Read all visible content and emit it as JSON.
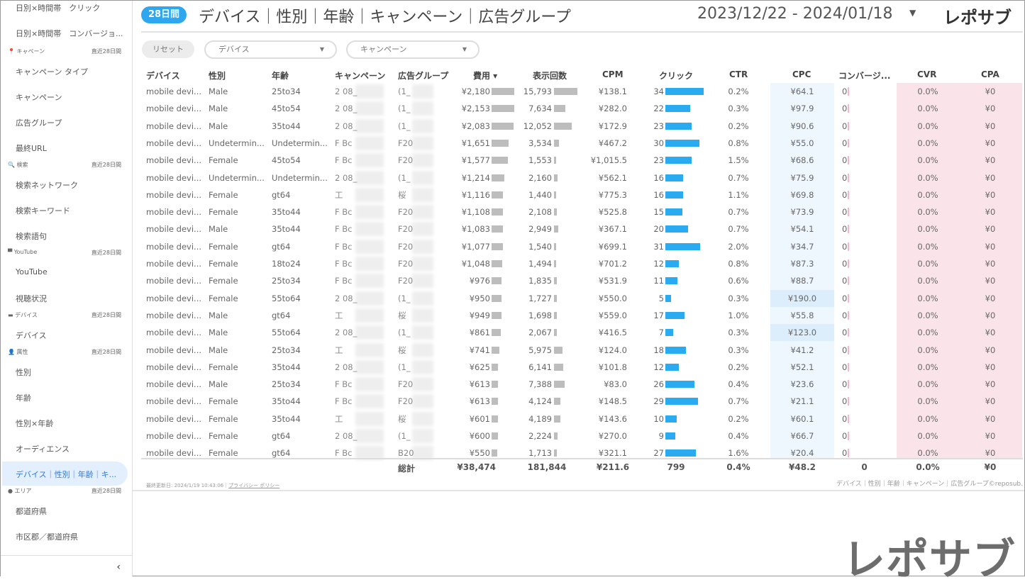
{
  "sidebar": {
    "items_top": [
      "日別×時間帯　クリック",
      "日別×時間帯　コンバージョ..."
    ],
    "sections": [
      {
        "label": "キャペーン",
        "period": "直近28日間",
        "icon": "pin-icon",
        "items": [
          "キャンペーン タイプ",
          "キャンペーン",
          "広告グループ",
          "最終URL"
        ]
      },
      {
        "label": "検索",
        "period": "直近28日間",
        "icon": "search-icon",
        "items": [
          "検索ネットワーク",
          "検索キーワード",
          "検索語句"
        ]
      },
      {
        "label": "YouTube",
        "period": "直近28日間",
        "icon": "tv-icon",
        "items": [
          "YouTube",
          "視聴状況"
        ]
      },
      {
        "label": "デバイス",
        "period": "直近28日間",
        "icon": "laptop-icon",
        "items": [
          "デバイス"
        ]
      },
      {
        "label": "属性",
        "period": "直近28日間",
        "icon": "person-icon",
        "items": [
          "性別",
          "年齢",
          "性別×年齢",
          "オーディエンス",
          "デバイス｜性別｜年齢｜キ..."
        ]
      },
      {
        "label": "エリア",
        "period": "直近28日間",
        "icon": "japan-flag-icon",
        "items": [
          "都道府県",
          "市区郡／都道府県"
        ]
      }
    ],
    "collapse": "‹"
  },
  "header": {
    "badge": "28日間",
    "title": "デバイス｜性別｜年齢｜キャンペーン｜広告グループ",
    "date_range": "2023/12/22 - 2024/01/18",
    "logo": "レポサブ"
  },
  "filters": {
    "reset": "リセット",
    "device": "デバイス",
    "campaign": "キャンペーン"
  },
  "table": {
    "headers": [
      "デバイス",
      "性別",
      "年齢",
      "キャンペーン",
      "広告グループ",
      "費用 ▾",
      "表示回数",
      "CPM",
      "クリック",
      "CTR",
      "CPC",
      "コンバージ...",
      "CVR",
      "CPA"
    ],
    "rows": [
      [
        "mobile devi...",
        "Male",
        "25to34",
        "2 08_",
        "(1_",
        "¥2,180",
        "15,793",
        "¥138.1",
        "34",
        "0.2%",
        "¥64.1",
        "0",
        "0.0%",
        "¥0"
      ],
      [
        "mobile devi...",
        "Male",
        "45to54",
        "2 08_",
        "(1_",
        "¥2,153",
        "7,634",
        "¥282.0",
        "22",
        "0.3%",
        "¥97.9",
        "0",
        "0.0%",
        "¥0"
      ],
      [
        "mobile devi...",
        "Male",
        "35to44",
        "2 08_",
        "(1_",
        "¥2,083",
        "12,052",
        "¥172.9",
        "23",
        "0.2%",
        "¥90.6",
        "0",
        "0.0%",
        "¥0"
      ],
      [
        "mobile devi...",
        "Undetermin...",
        "Undetermin...",
        "F Bc",
        "F20",
        "¥1,651",
        "3,534",
        "¥467.2",
        "30",
        "0.8%",
        "¥55.0",
        "0",
        "0.0%",
        "¥0"
      ],
      [
        "mobile devi...",
        "Female",
        "45to54",
        "F Bc",
        "F20",
        "¥1,577",
        "1,553",
        "¥1,015.5",
        "23",
        "1.5%",
        "¥68.6",
        "0",
        "0.0%",
        "¥0"
      ],
      [
        "mobile devi...",
        "Undetermin...",
        "Undetermin...",
        "2 08_",
        "(1_",
        "¥1,214",
        "2,160",
        "¥562.1",
        "16",
        "0.7%",
        "¥75.9",
        "0",
        "0.0%",
        "¥0"
      ],
      [
        "mobile devi...",
        "Female",
        "gt64",
        "工",
        "桜",
        "¥1,116",
        "1,440",
        "¥775.3",
        "16",
        "1.1%",
        "¥69.8",
        "0",
        "0.0%",
        "¥0"
      ],
      [
        "mobile devi...",
        "Female",
        "35to44",
        "F Bc",
        "F20",
        "¥1,108",
        "2,108",
        "¥525.8",
        "15",
        "0.7%",
        "¥73.9",
        "0",
        "0.0%",
        "¥0"
      ],
      [
        "mobile devi...",
        "Male",
        "35to44",
        "F Bc",
        "F20",
        "¥1,083",
        "2,949",
        "¥367.1",
        "20",
        "0.7%",
        "¥54.1",
        "0",
        "0.0%",
        "¥0"
      ],
      [
        "mobile devi...",
        "Female",
        "gt64",
        "F Bc",
        "F20",
        "¥1,077",
        "1,540",
        "¥699.1",
        "31",
        "2.0%",
        "¥34.7",
        "0",
        "0.0%",
        "¥0"
      ],
      [
        "mobile devi...",
        "Female",
        "18to24",
        "F Bc",
        "F20",
        "¥1,048",
        "1,494",
        "¥701.2",
        "12",
        "0.8%",
        "¥87.3",
        "0",
        "0.0%",
        "¥0"
      ],
      [
        "mobile devi...",
        "Female",
        "25to34",
        "F Bc",
        "F20",
        "¥976",
        "1,835",
        "¥531.9",
        "11",
        "0.6%",
        "¥88.7",
        "0",
        "0.0%",
        "¥0"
      ],
      [
        "mobile devi...",
        "Female",
        "55to64",
        "2 08_",
        "(1_",
        "¥950",
        "1,727",
        "¥550.0",
        "5",
        "0.3%",
        "¥190.0",
        "0",
        "0.0%",
        "¥0"
      ],
      [
        "mobile devi...",
        "Male",
        "gt64",
        "工",
        "桜",
        "¥949",
        "1,698",
        "¥559.0",
        "17",
        "1.0%",
        "¥55.8",
        "0",
        "0.0%",
        "¥0"
      ],
      [
        "mobile devi...",
        "Male",
        "55to64",
        "2 08_",
        "(1_",
        "¥861",
        "2,067",
        "¥416.5",
        "7",
        "0.3%",
        "¥123.0",
        "0",
        "0.0%",
        "¥0"
      ],
      [
        "mobile devi...",
        "Male",
        "25to34",
        "工",
        "桜",
        "¥741",
        "5,975",
        "¥124.0",
        "18",
        "0.3%",
        "¥41.2",
        "0",
        "0.0%",
        "¥0"
      ],
      [
        "mobile devi...",
        "Female",
        "35to44",
        "2 08_",
        "(1_",
        "¥625",
        "6,141",
        "¥101.8",
        "12",
        "0.2%",
        "¥52.1",
        "0",
        "0.0%",
        "¥0"
      ],
      [
        "mobile devi...",
        "Male",
        "25to34",
        "F Bc",
        "F20",
        "¥613",
        "7,388",
        "¥83.0",
        "26",
        "0.4%",
        "¥23.6",
        "0",
        "0.0%",
        "¥0"
      ],
      [
        "mobile devi...",
        "Female",
        "35to44",
        "F Bc",
        "F20",
        "¥613",
        "4,124",
        "¥148.5",
        "29",
        "0.7%",
        "¥21.1",
        "0",
        "0.0%",
        "¥0"
      ],
      [
        "mobile devi...",
        "Female",
        "35to44",
        "工",
        "桜",
        "¥601",
        "4,189",
        "¥143.6",
        "10",
        "0.2%",
        "¥60.1",
        "0",
        "0.0%",
        "¥0"
      ],
      [
        "mobile devi...",
        "Female",
        "gt64",
        "2 08_",
        "(1_",
        "¥600",
        "2,224",
        "¥270.0",
        "9",
        "0.4%",
        "¥66.7",
        "0",
        "0.0%",
        "¥0"
      ],
      [
        "mobile devi...",
        "Female",
        "gt64",
        "F Bc",
        "B20",
        "¥550",
        "1,713",
        "¥321.1",
        "27",
        "1.6%",
        "¥20.4",
        "0",
        "0.0%",
        "¥0"
      ]
    ],
    "totals": {
      "label": "総計",
      "cost": "¥38,474",
      "impressions": "181,844",
      "cpm": "¥211.6",
      "clicks": "799",
      "ctr": "0.4%",
      "cpc": "¥48.2",
      "conversions": "0",
      "cvr": "0.0%",
      "cpa": "¥0"
    }
  },
  "footer": {
    "updated": "最終更新日: 2024/1/19 10:43:06｜",
    "privacy": "プライバシー ポリシー",
    "credit": "デバイス｜性別｜年齢｜キャンペーン｜広告グループ©reposub."
  },
  "watermark": "レポサブ",
  "colors": {
    "accent": "#2ea7ef",
    "bar_blue": "#2aaaf0",
    "bar_gray": "#bdbdbd",
    "cpc_bg": "#eef7fe",
    "cv_pink": "#fbe3ea"
  }
}
